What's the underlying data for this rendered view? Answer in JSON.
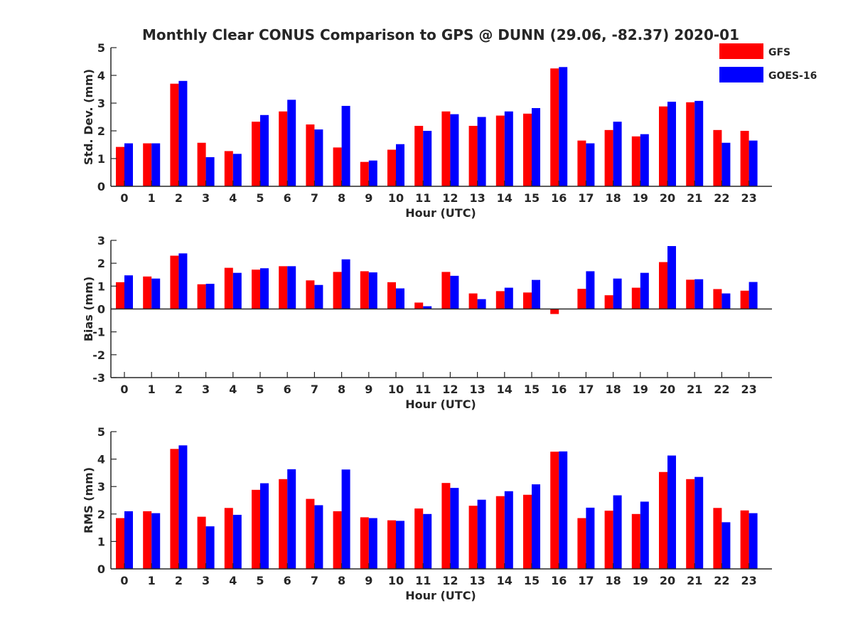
{
  "title": "Monthly Clear CONUS Comparison to GPS @ DUNN (29.06, -82.37) 2020-01",
  "legend": [
    {
      "name": "GFS",
      "color": "#ff0000"
    },
    {
      "name": "GOES-16",
      "color": "#0000ff"
    }
  ],
  "chart_data": [
    {
      "type": "bar",
      "ylabel": "Std. Dev. (mm)",
      "xlabel": "Hour (UTC)",
      "ylim": [
        0,
        5
      ],
      "yticks": [
        0,
        1,
        2,
        3,
        4,
        5
      ],
      "categories": [
        "0",
        "1",
        "2",
        "3",
        "4",
        "5",
        "6",
        "7",
        "8",
        "9",
        "10",
        "11",
        "12",
        "13",
        "14",
        "15",
        "16",
        "17",
        "18",
        "19",
        "20",
        "21",
        "22",
        "23"
      ],
      "series": [
        {
          "name": "GFS",
          "color": "#ff0000",
          "values": [
            1.42,
            1.55,
            3.7,
            1.57,
            1.27,
            2.33,
            2.7,
            2.23,
            1.4,
            0.88,
            1.32,
            2.18,
            2.7,
            2.18,
            2.55,
            2.62,
            4.25,
            1.65,
            2.03,
            1.8,
            2.88,
            3.03,
            2.03,
            2.0
          ]
        },
        {
          "name": "GOES-16",
          "color": "#0000ff",
          "values": [
            1.55,
            1.55,
            3.8,
            1.05,
            1.17,
            2.57,
            3.12,
            2.05,
            2.9,
            0.93,
            1.52,
            2.0,
            2.6,
            2.5,
            2.7,
            2.82,
            4.3,
            1.55,
            2.33,
            1.88,
            3.05,
            3.08,
            1.57,
            1.65
          ]
        }
      ]
    },
    {
      "type": "bar",
      "ylabel": "Bias (mm)",
      "xlabel": "Hour (UTC)",
      "ylim": [
        -3,
        3
      ],
      "yticks": [
        -3,
        -2,
        -1,
        0,
        1,
        2,
        3
      ],
      "categories": [
        "0",
        "1",
        "2",
        "3",
        "4",
        "5",
        "6",
        "7",
        "8",
        "9",
        "10",
        "11",
        "12",
        "13",
        "14",
        "15",
        "16",
        "17",
        "18",
        "19",
        "20",
        "21",
        "22",
        "23"
      ],
      "series": [
        {
          "name": "GFS",
          "color": "#ff0000",
          "values": [
            1.17,
            1.42,
            2.33,
            1.08,
            1.8,
            1.72,
            1.87,
            1.25,
            1.62,
            1.65,
            1.17,
            0.28,
            1.62,
            0.68,
            0.78,
            0.72,
            -0.22,
            0.88,
            0.6,
            0.93,
            2.05,
            1.28,
            0.87,
            0.8
          ]
        },
        {
          "name": "GOES-16",
          "color": "#0000ff",
          "values": [
            1.47,
            1.33,
            2.43,
            1.1,
            1.58,
            1.78,
            1.87,
            1.05,
            2.17,
            1.6,
            0.9,
            0.12,
            1.45,
            0.43,
            0.93,
            1.27,
            0.0,
            1.65,
            1.33,
            1.58,
            2.75,
            1.3,
            0.68,
            1.18
          ]
        }
      ]
    },
    {
      "type": "bar",
      "ylabel": "RMS (mm)",
      "xlabel": "Hour (UTC)",
      "ylim": [
        0,
        5
      ],
      "yticks": [
        0,
        1,
        2,
        3,
        4,
        5
      ],
      "categories": [
        "0",
        "1",
        "2",
        "3",
        "4",
        "5",
        "6",
        "7",
        "8",
        "9",
        "10",
        "11",
        "12",
        "13",
        "14",
        "15",
        "16",
        "17",
        "18",
        "19",
        "20",
        "21",
        "22",
        "23"
      ],
      "series": [
        {
          "name": "GFS",
          "color": "#ff0000",
          "values": [
            1.85,
            2.1,
            4.37,
            1.9,
            2.22,
            2.88,
            3.27,
            2.55,
            2.1,
            1.88,
            1.77,
            2.2,
            3.13,
            2.3,
            2.65,
            2.7,
            4.27,
            1.85,
            2.12,
            2.0,
            3.53,
            3.27,
            2.22,
            2.13
          ]
        },
        {
          "name": "GOES-16",
          "color": "#0000ff",
          "values": [
            2.1,
            2.03,
            4.5,
            1.55,
            1.97,
            3.12,
            3.63,
            2.32,
            3.62,
            1.85,
            1.75,
            2.0,
            2.95,
            2.52,
            2.83,
            3.08,
            4.28,
            2.23,
            2.68,
            2.45,
            4.13,
            3.35,
            1.7,
            2.03
          ]
        }
      ]
    }
  ]
}
